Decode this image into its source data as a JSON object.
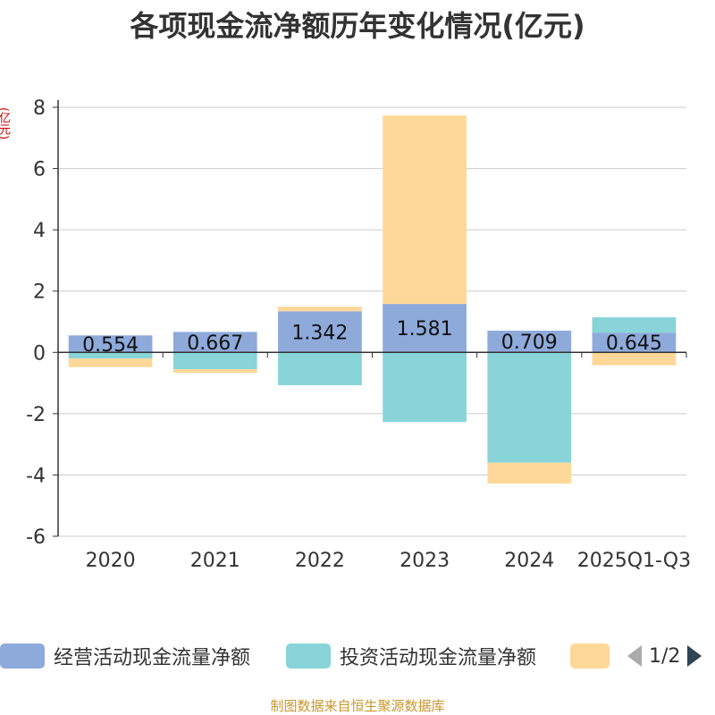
{
  "chart_data": {
    "type": "bar",
    "stacked": true,
    "title": "各项现金流净额历年变化情况(亿元)",
    "ylabel": "(亿元)",
    "ylim": [
      -6,
      8
    ],
    "yticks": [
      -6,
      -4,
      -2,
      0,
      2,
      4,
      6,
      8
    ],
    "categories": [
      "2020",
      "2021",
      "2022",
      "2023",
      "2024",
      "2025Q1-Q3"
    ],
    "series": [
      {
        "name": "经营活动现金流量净额",
        "color": "#8eaadb",
        "values": [
          0.554,
          0.667,
          1.342,
          1.581,
          0.709,
          0.645
        ],
        "labels": [
          "0.554",
          "0.667",
          "1.342",
          "1.581",
          "0.709",
          "0.645"
        ]
      },
      {
        "name": "投资活动现金流量净额",
        "color": "#88d4d8",
        "values": [
          -0.2,
          -0.55,
          -1.07,
          -2.27,
          -3.6,
          0.5
        ]
      },
      {
        "name": "",
        "color": "#fdd899",
        "values": [
          -0.28,
          -0.12,
          0.15,
          6.15,
          -0.68,
          -0.42
        ]
      }
    ],
    "grid": true
  },
  "legend": {
    "items": [
      {
        "label": "经营活动现金流量净额",
        "color": "#8eaadb"
      },
      {
        "label": "投资活动现金流量净额",
        "color": "#88d4d8"
      },
      {
        "label": "",
        "color": "#fdd899"
      }
    ],
    "page": "1/2"
  },
  "source": "制图数据来自恒生聚源数据库"
}
